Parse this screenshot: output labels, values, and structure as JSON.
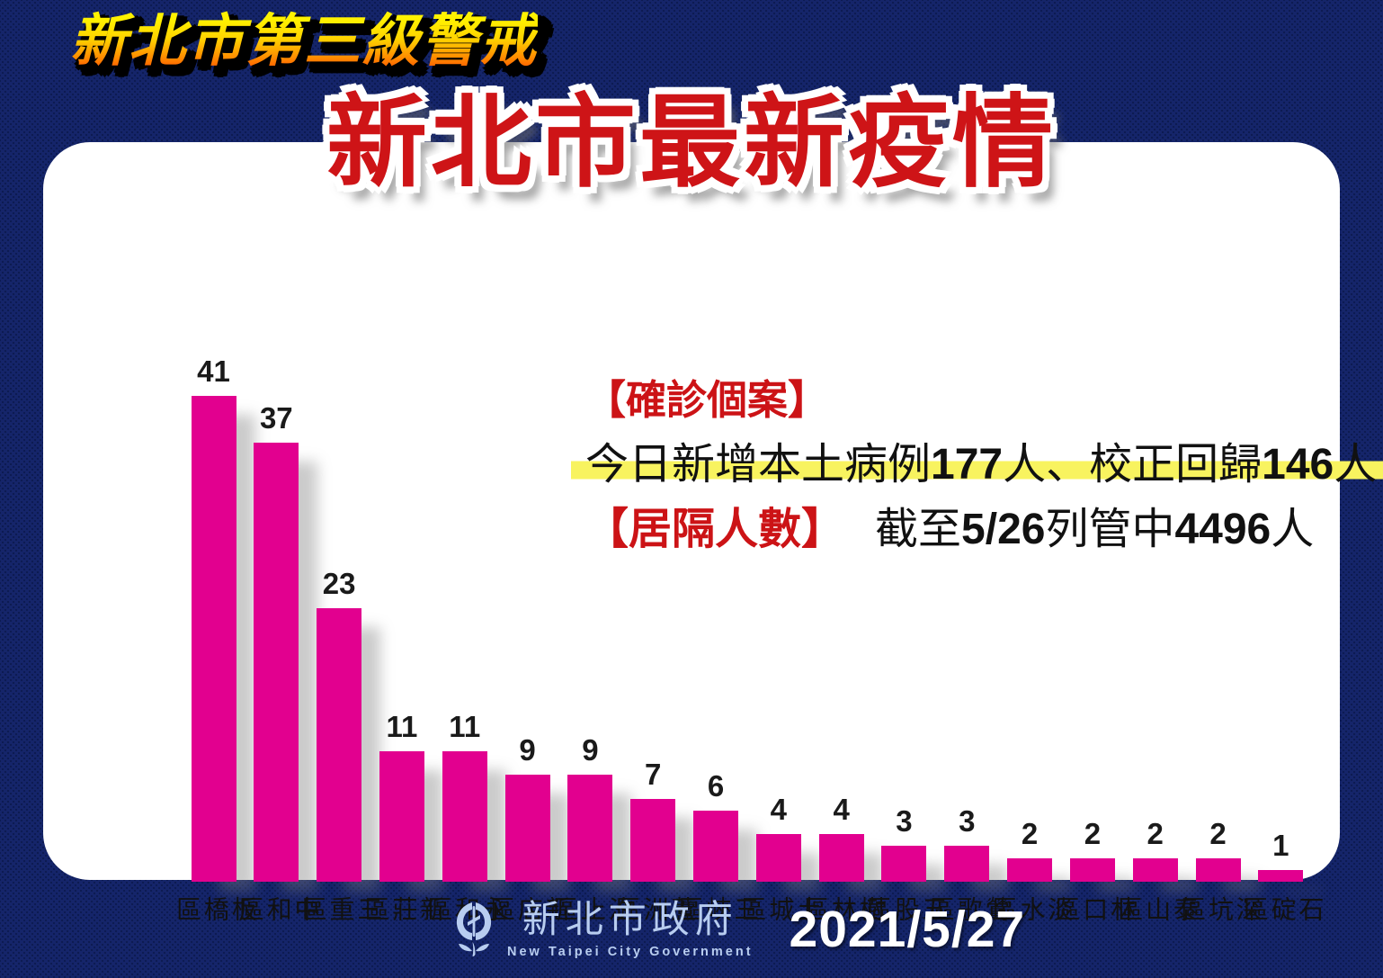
{
  "banner": {
    "title": "新北市第三級警戒"
  },
  "header": {
    "title": "新北市最新疫情"
  },
  "info": {
    "confirmed_label": "【確診個案】",
    "case_line": {
      "pre": "今日新增本土病例",
      "num1": "177",
      "mid": "人、校正回歸",
      "num2": "146",
      "suf": "人"
    },
    "quarantine": {
      "label": "【居隔人數】",
      "pre": "截至",
      "num1": "5/26",
      "mid": "列管中",
      "num2": "4496",
      "suf": "人"
    }
  },
  "chart_data": {
    "type": "bar",
    "categories": [
      "板橋區",
      "中和區",
      "三重區",
      "新莊區",
      "永和區",
      "新店區",
      "汐止區",
      "蘆洲區",
      "三峽區",
      "土城區",
      "樹林區",
      "五股區",
      "鶯歌區",
      "淡水區",
      "林口區",
      "泰山區",
      "深坑區",
      "石碇區"
    ],
    "values": [
      41,
      37,
      23,
      11,
      11,
      9,
      9,
      7,
      6,
      4,
      4,
      3,
      3,
      2,
      2,
      2,
      2,
      1
    ],
    "title": "新北市最新疫情",
    "xlabel": "",
    "ylabel": "",
    "ylim": [
      0,
      41
    ],
    "grid": false,
    "legend": false,
    "value_labels": true,
    "bar_color": "#e2008f"
  },
  "footer": {
    "org_zh": "新北市政府",
    "org_en": "New Taipei City Government",
    "date": "2021/5/27"
  },
  "colors": {
    "background": "#15256a",
    "card": "#ffffff",
    "bar": "#e2008f",
    "title_red": "#ce1417",
    "bracket_red": "#cc1316",
    "highlight_yellow": "#f8f35f",
    "banner_gradient_top": "#fff200",
    "banner_gradient_bottom": "#ff3c00",
    "logo_blue": "#b8cdf0"
  }
}
